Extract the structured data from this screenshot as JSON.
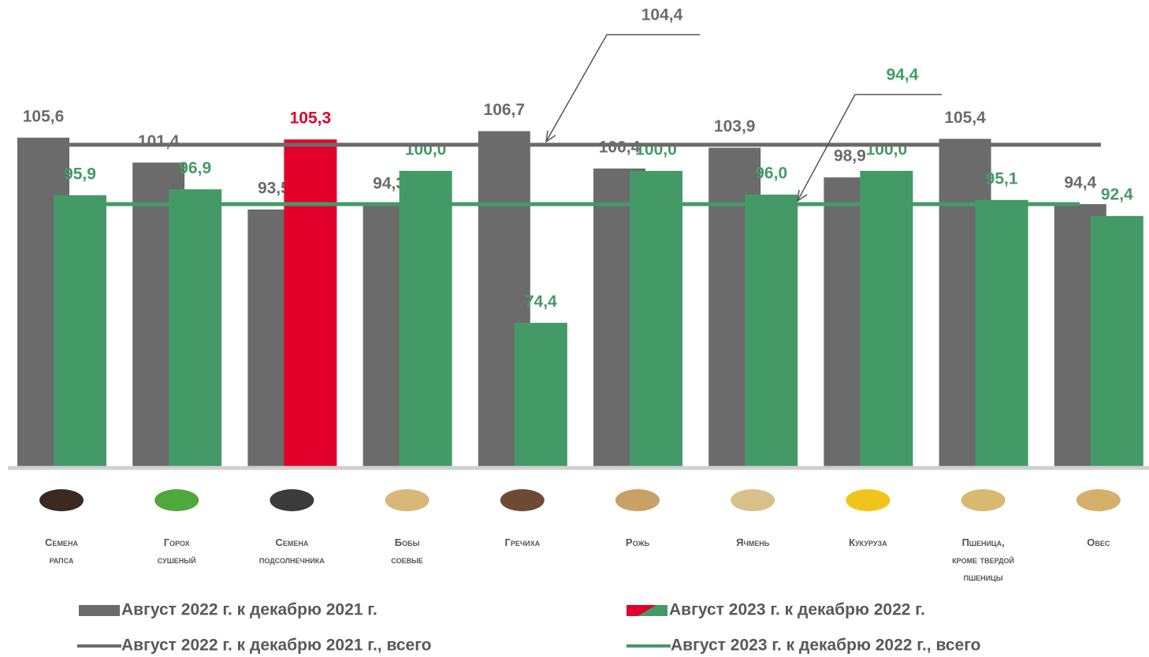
{
  "chart_data": {
    "type": "bar",
    "categories": [
      "Семена\nрапса",
      "Горох\nсушеный",
      "Семена\nподсолнечника",
      "Бобы\nсоевые",
      "Гречиха",
      "Рожь",
      "Ячмень",
      "Кукуруза",
      "Пшеница,\nкроме твердой\nпшеницы",
      "Овес"
    ],
    "series": [
      {
        "name": "Август 2022 г. к декабрю 2021 г.",
        "color": "#6b6b6b",
        "values": [
          105.6,
          101.4,
          93.5,
          94.3,
          106.7,
          100.4,
          103.9,
          98.9,
          105.4,
          94.4
        ],
        "value_labels": [
          "105,6",
          "101,4",
          "93,5",
          "94,3",
          "106,7",
          "100,4",
          "103,9",
          "98,9",
          "105,4",
          "94,4"
        ]
      },
      {
        "name": "Август 2023 г. к декабрю 2022 г.",
        "color": "#449a67",
        "highlight_index": 2,
        "highlight_color": "#e2002b",
        "values": [
          95.9,
          96.9,
          105.3,
          100.0,
          74.4,
          100.0,
          96.0,
          100.0,
          95.1,
          92.4
        ],
        "value_labels": [
          "95,9",
          "96,9",
          "105,3",
          "100,0",
          "74,4",
          "100,0",
          "96,0",
          "100,0",
          "95,1",
          "92,4"
        ]
      }
    ],
    "reference_lines": [
      {
        "name": "Август 2022 г. к декабрю 2021 г., всего",
        "color": "#6b6b6b",
        "value": 104.4,
        "value_label": "104,4"
      },
      {
        "name": "Август 2023 г. к декабрю 2022 г., всего",
        "color": "#449a67",
        "value": 94.4,
        "value_label": "94,4"
      }
    ],
    "ylim": [
      50.2,
      128.8
    ]
  }
}
